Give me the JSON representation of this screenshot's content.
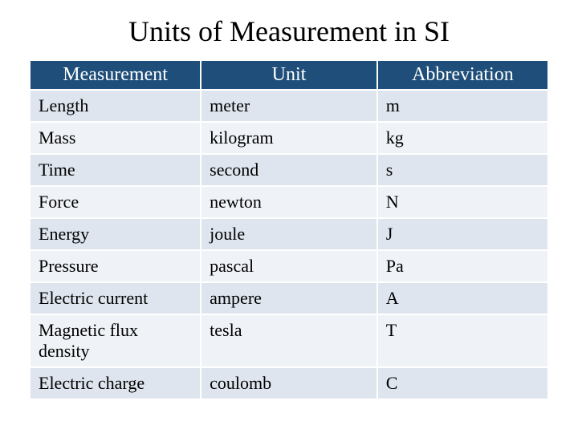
{
  "title": "Units of Measurement in SI",
  "table": {
    "columns": [
      "Measurement",
      "Unit",
      "Abbreviation"
    ],
    "rows": [
      [
        "Length",
        "meter",
        "m"
      ],
      [
        "Mass",
        "kilogram",
        "kg"
      ],
      [
        "Time",
        "second",
        "s"
      ],
      [
        "Force",
        "newton",
        "N"
      ],
      [
        "Energy",
        "joule",
        "J"
      ],
      [
        "Pressure",
        "pascal",
        "Pa"
      ],
      [
        "Electric current",
        "ampere",
        "A"
      ],
      [
        "Magnetic flux density",
        "tesla",
        "T"
      ],
      [
        "Electric charge",
        "coulomb",
        "C"
      ]
    ],
    "header_bg": "#1e4e79",
    "header_fg": "#ffffff",
    "row_odd_bg": "#dee5ee",
    "row_even_bg": "#eff3f7",
    "border_color": "#ffffff",
    "title_fontsize": 36,
    "header_fontsize": 24,
    "cell_fontsize": 22,
    "column_widths_pct": [
      33,
      34,
      33
    ]
  }
}
